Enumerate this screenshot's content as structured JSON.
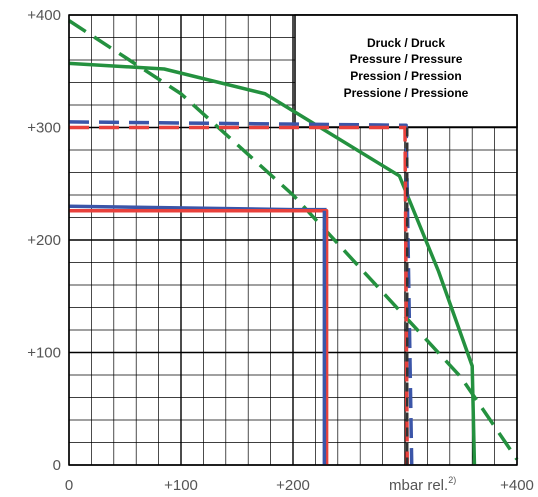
{
  "chart_data": {
    "type": "line",
    "title": "",
    "xlabel": "mbar rel.",
    "xlabel_superscript": "2)",
    "ylabel": "",
    "xlim": [
      0,
      400
    ],
    "ylim": [
      0,
      400
    ],
    "x_ticks": [
      0,
      100,
      200,
      400
    ],
    "x_tick_labels": [
      "0",
      "+100",
      "+200",
      "+400"
    ],
    "y_ticks": [
      0,
      100,
      200,
      300,
      400
    ],
    "y_tick_labels": [
      "0",
      "+100",
      "+200",
      "+300",
      "+400"
    ],
    "grid": true,
    "legend_position": "top-right",
    "legend_lines": [
      "Druck / Druck",
      "Pressure / Pressure",
      "Pression / Pression",
      "Pressione / Pressione"
    ],
    "colors": {
      "blue": "#3b55a8",
      "red": "#e8413c",
      "green": "#24913f",
      "dark": "#333333"
    },
    "series": [
      {
        "color": "green",
        "style": "solid",
        "x": [
          0,
          85,
          175,
          295,
          330,
          360,
          362
        ],
        "y": [
          357,
          352,
          330,
          257,
          172,
          88,
          0
        ]
      },
      {
        "color": "green",
        "style": "dashed",
        "x": [
          0,
          100,
          200,
          300,
          350,
          400
        ],
        "y": [
          395,
          330,
          240,
          132,
          78,
          5
        ]
      },
      {
        "color": "blue",
        "style": "solid",
        "x": [
          0,
          200,
          230
        ],
        "y": [
          230,
          227,
          227
        ]
      },
      {
        "color": "red",
        "style": "solid",
        "x": [
          0,
          230,
          230
        ],
        "y": [
          226,
          226,
          0
        ]
      },
      {
        "color": "blue",
        "style": "solid",
        "x": [
          228,
          228
        ],
        "y": [
          226,
          0
        ]
      },
      {
        "color": "blue",
        "style": "dashed",
        "x": [
          0,
          300,
          301,
          306
        ],
        "y": [
          305,
          302,
          302,
          0
        ]
      },
      {
        "color": "red",
        "style": "dashed",
        "x": [
          0,
          300,
          300,
          302
        ],
        "y": [
          300,
          300,
          300,
          0
        ]
      },
      {
        "color": "dark",
        "style": "dashed",
        "x": [
          302,
          302
        ],
        "y": [
          300,
          0
        ]
      }
    ]
  }
}
